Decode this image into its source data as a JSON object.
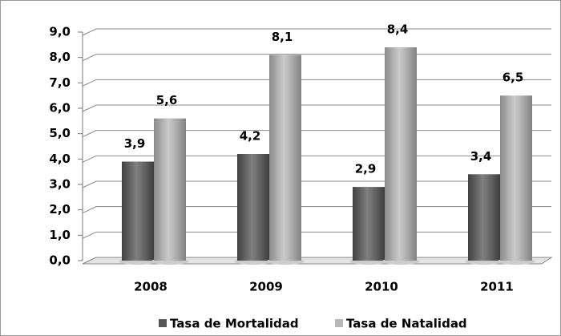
{
  "chart_data": {
    "type": "bar",
    "categories": [
      "2008",
      "2009",
      "2010",
      "2011"
    ],
    "series": [
      {
        "name": "Tasa de Mortalidad",
        "color": "#555555",
        "values": [
          3.9,
          4.2,
          2.9,
          3.4
        ],
        "value_labels": [
          "3,9",
          "4,2",
          "2,9",
          "3,4"
        ]
      },
      {
        "name": "Tasa de Natalidad",
        "color": "#b8b8b8",
        "values": [
          5.6,
          8.1,
          8.4,
          6.5
        ],
        "value_labels": [
          "5,6",
          "8,1",
          "8,4",
          "6,5"
        ]
      }
    ],
    "ylim": [
      0,
      9
    ],
    "yticks": [
      {
        "value": 0,
        "label": "0,0"
      },
      {
        "value": 1,
        "label": "1,0"
      },
      {
        "value": 2,
        "label": "2,0"
      },
      {
        "value": 3,
        "label": "3,0"
      },
      {
        "value": 4,
        "label": "4,0"
      },
      {
        "value": 5,
        "label": "5,0"
      },
      {
        "value": 6,
        "label": "6,0"
      },
      {
        "value": 7,
        "label": "7,0"
      },
      {
        "value": 8,
        "label": "8,0"
      },
      {
        "value": 9,
        "label": "9,0"
      }
    ],
    "grid": true,
    "legend": "bottom"
  }
}
